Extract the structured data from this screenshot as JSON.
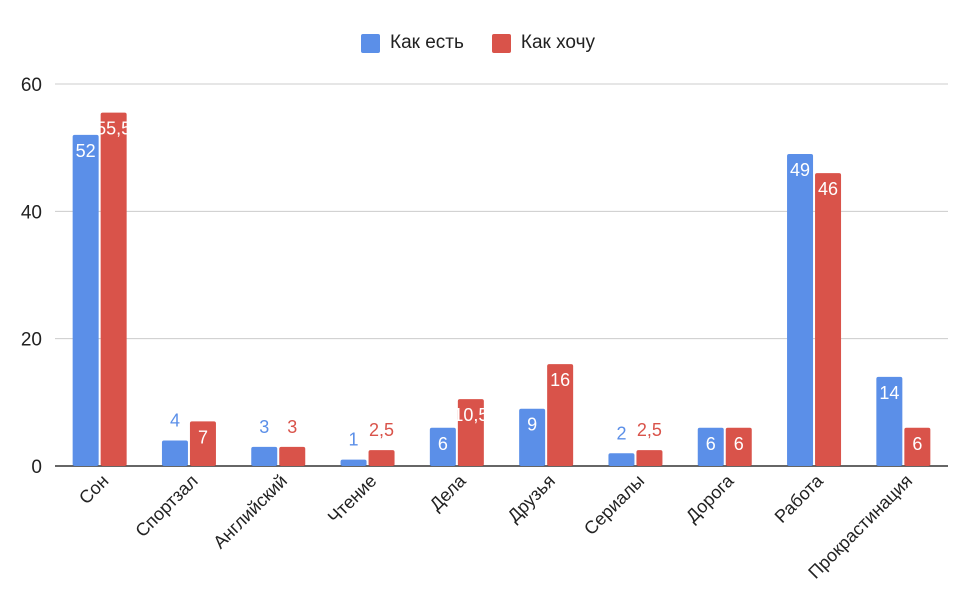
{
  "chart_data": {
    "type": "bar",
    "categories": [
      "Сон",
      "Спортзал",
      "Английский",
      "Чтение",
      "Дела",
      "Друзья",
      "Сериалы",
      "Дорога",
      "Работа",
      "Прокрастинация"
    ],
    "series": [
      {
        "name": "Как есть",
        "color": "#5B8FE8",
        "values": [
          52,
          4,
          3,
          1,
          6,
          9,
          2,
          6,
          49,
          14
        ],
        "labels": [
          "52",
          "4",
          "3",
          "1",
          "6",
          "9",
          "2",
          "6",
          "49",
          "14"
        ]
      },
      {
        "name": "Как хочу",
        "color": "#D9534A",
        "values": [
          55.5,
          7,
          3,
          2.5,
          10.5,
          16,
          2.5,
          6,
          46,
          6
        ],
        "labels": [
          "55,5",
          "7",
          "3",
          "2,5",
          "10,5",
          "16",
          "2,5",
          "6",
          "46",
          "6"
        ]
      }
    ],
    "yticks": [
      "0",
      "20",
      "40",
      "60"
    ],
    "ylim": [
      0,
      60
    ],
    "grid": true,
    "legend_position": "top-center",
    "title": "",
    "xlabel": "",
    "ylabel": ""
  }
}
